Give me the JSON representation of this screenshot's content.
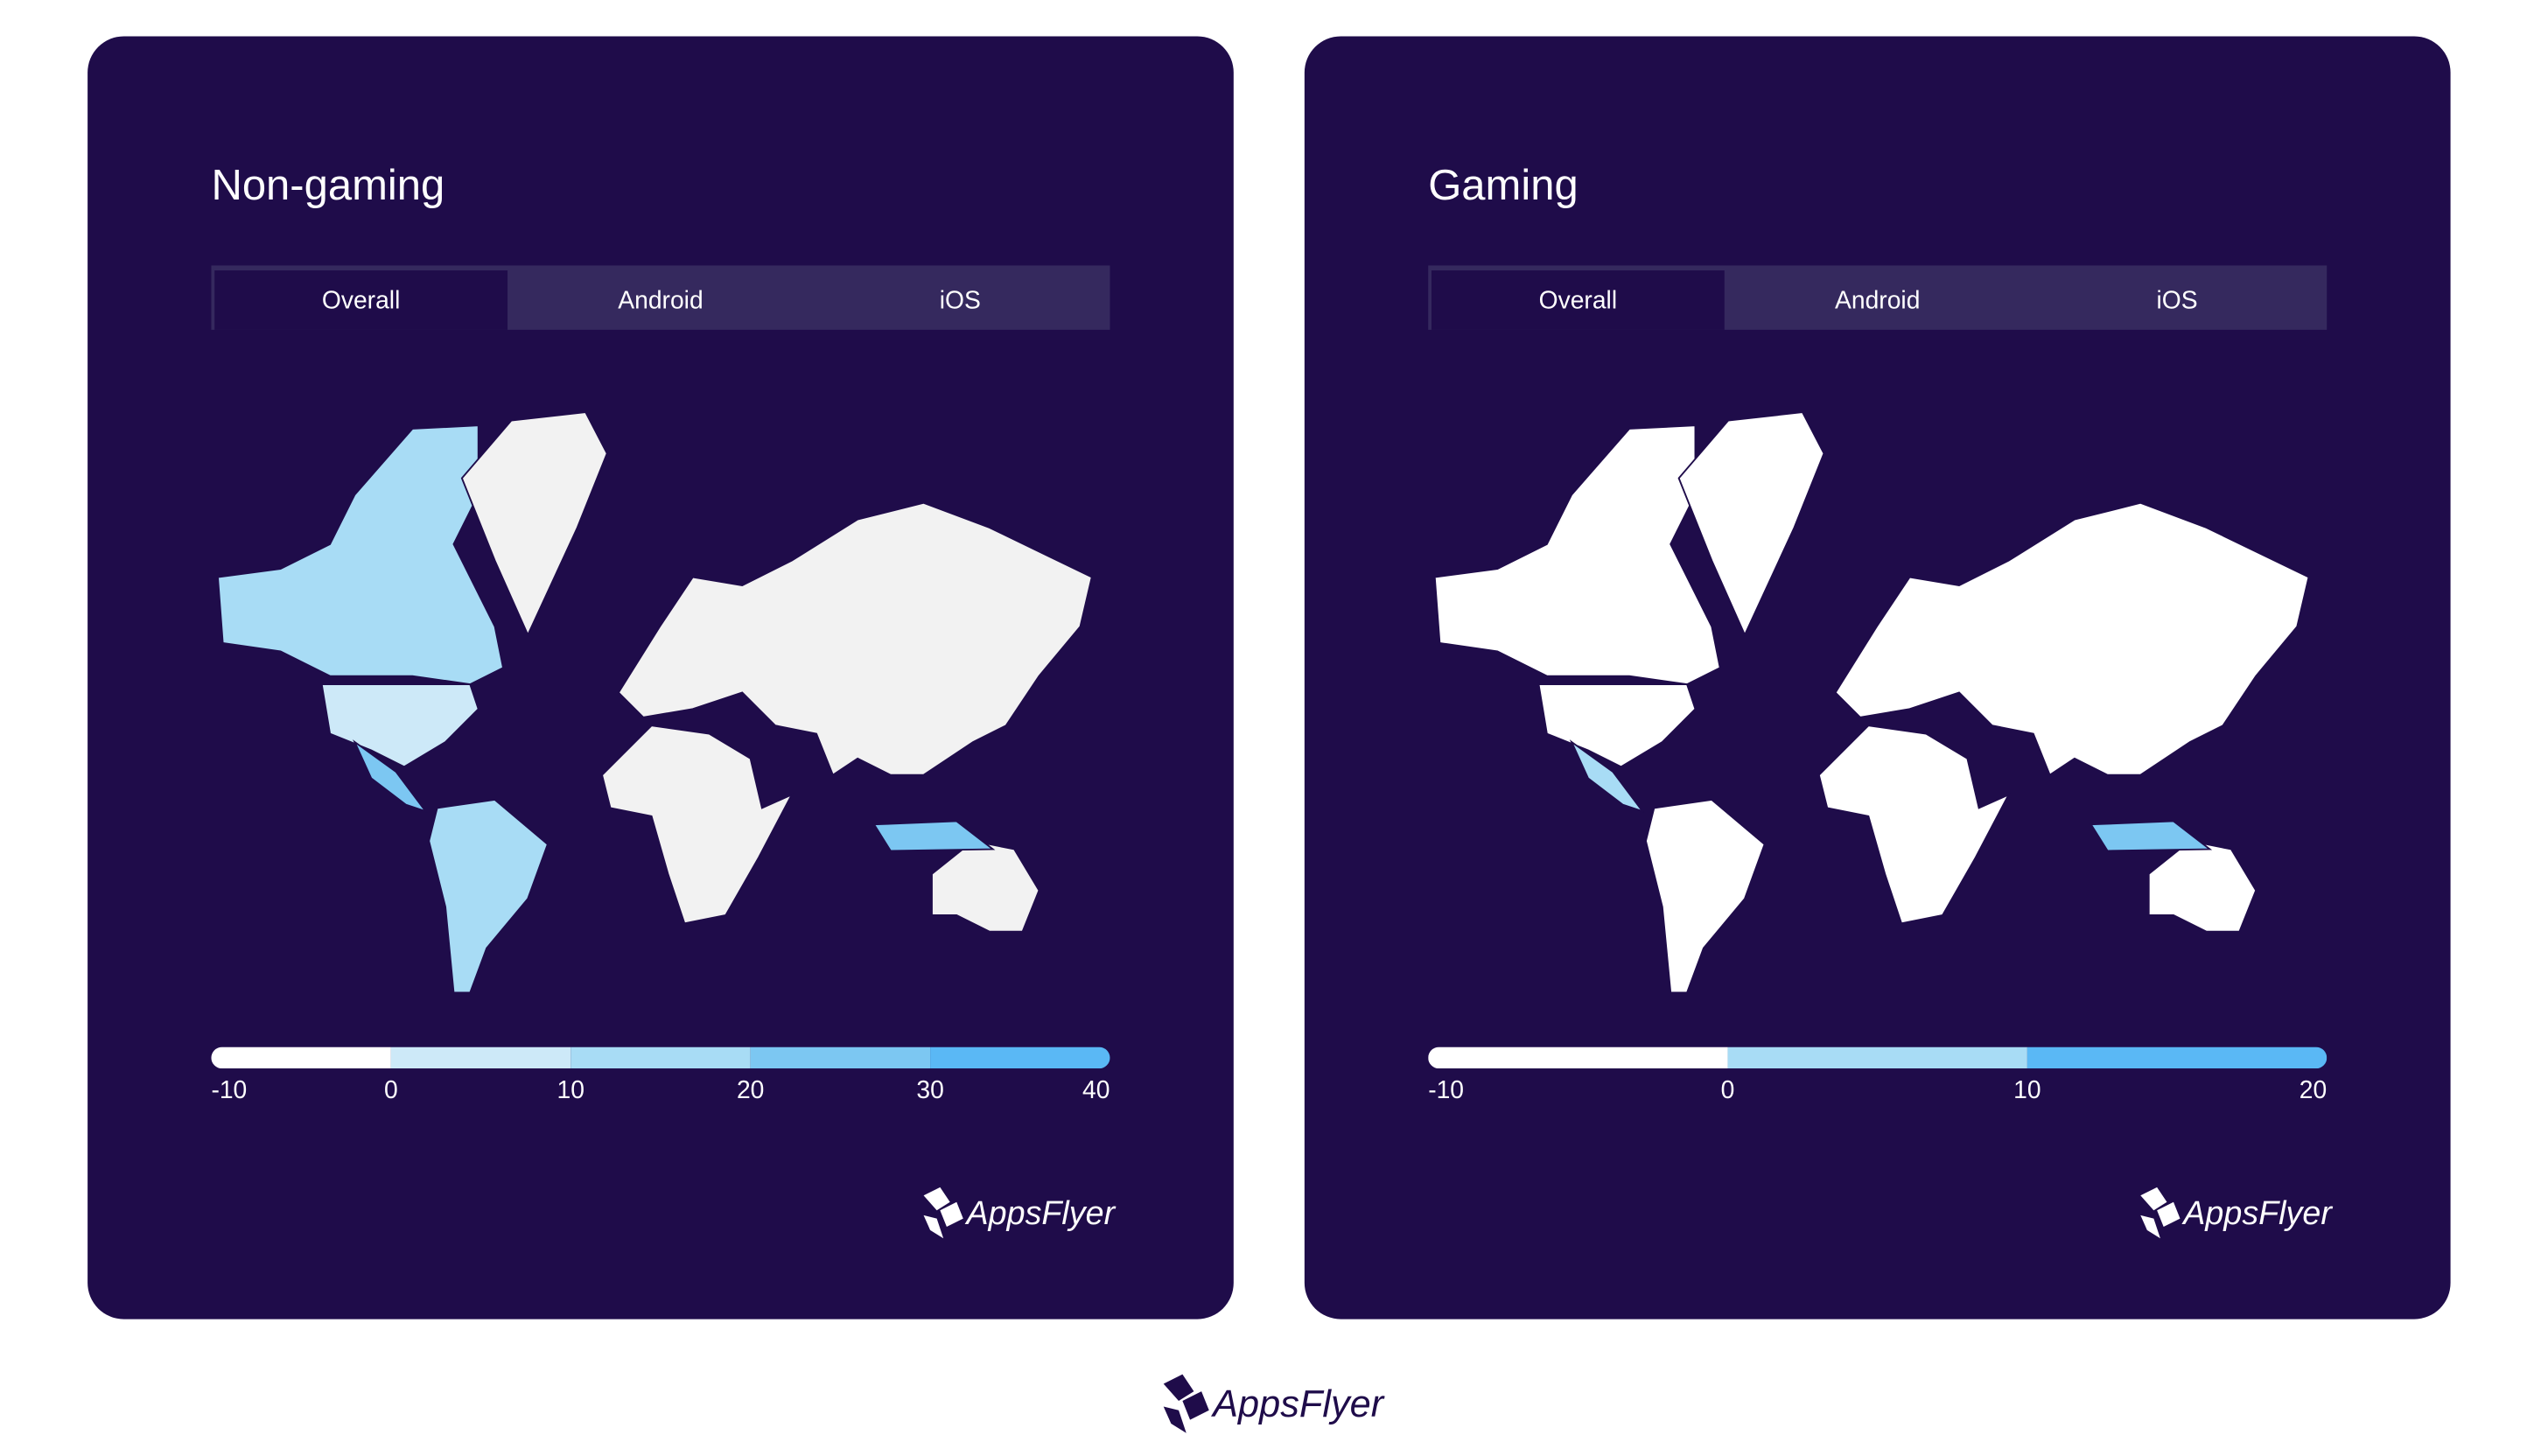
{
  "cards": [
    {
      "title": "Non-gaming",
      "tabs": [
        "Overall",
        "Android",
        "iOS"
      ],
      "active_tab": 0,
      "legend": {
        "ticks": [
          -10,
          0,
          10,
          20,
          30,
          40
        ],
        "colors": [
          "#ffffff",
          "#cde9f8",
          "#a8dcf5",
          "#7cc7f2",
          "#5ab8f5"
        ]
      },
      "logo": "AppsFlyer"
    },
    {
      "title": "Gaming",
      "tabs": [
        "Overall",
        "Android",
        "iOS"
      ],
      "active_tab": 0,
      "legend": {
        "ticks": [
          -10,
          0,
          10,
          20
        ],
        "colors": [
          "#ffffff",
          "#a8dcf5",
          "#5ab8f5"
        ]
      },
      "logo": "AppsFlyer"
    }
  ],
  "footer_logo": "AppsFlyer"
}
